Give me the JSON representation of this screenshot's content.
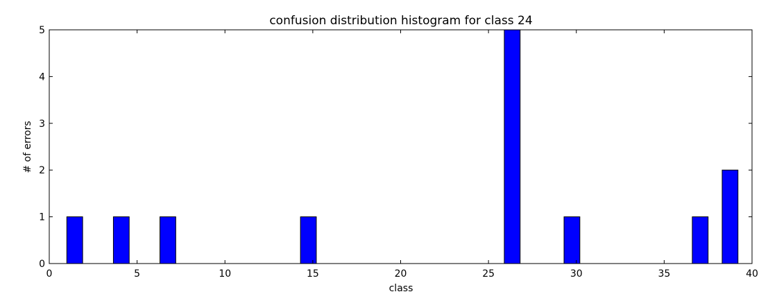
{
  "chart_data": {
    "type": "bar",
    "title": "confusion distribution histogram for class 24",
    "xlabel": "class",
    "ylabel": "# of errors",
    "xlim": [
      0,
      40
    ],
    "ylim": [
      0,
      5
    ],
    "xticks": [
      0,
      5,
      10,
      15,
      20,
      25,
      30,
      35,
      40
    ],
    "yticks": [
      0,
      1,
      2,
      3,
      4,
      5
    ],
    "bar_width": 0.9,
    "grid": false,
    "bar_color": "#0000ff",
    "edge_color": "#000000",
    "bars": [
      {
        "x": 1,
        "value": 1
      },
      {
        "x": 3.65,
        "value": 1
      },
      {
        "x": 6.3,
        "value": 1
      },
      {
        "x": 14.3,
        "value": 1
      },
      {
        "x": 25.9,
        "value": 5
      },
      {
        "x": 29.3,
        "value": 1
      },
      {
        "x": 36.6,
        "value": 1
      },
      {
        "x": 38.3,
        "value": 2
      }
    ]
  }
}
